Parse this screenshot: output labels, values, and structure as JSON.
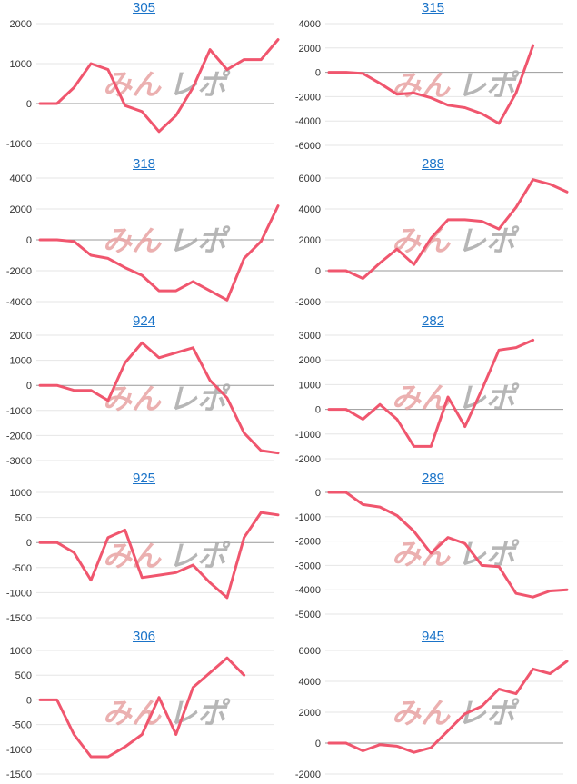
{
  "watermark": {
    "text": "みんレポ",
    "colors": {
      "left": "#e8a3a3",
      "right": "#aaaaaa"
    }
  },
  "line_color": "#f0566e",
  "grid_color": "#e6e6e6",
  "title_color": "#1a73c8",
  "chart_data": [
    {
      "type": "line",
      "title": "305",
      "ylim": [
        -1000,
        2000
      ],
      "yticks": [
        2000,
        1000,
        0,
        -1000
      ],
      "values": [
        0,
        0,
        400,
        1000,
        850,
        -50,
        -200,
        -700,
        -300,
        400,
        1350,
        850,
        1100,
        1100,
        1600
      ]
    },
    {
      "type": "line",
      "title": "315",
      "ylim": [
        -6000,
        4000
      ],
      "yticks": [
        4000,
        2000,
        0,
        -2000,
        -4000,
        -6000
      ],
      "values": [
        0,
        0,
        -100,
        -900,
        -1800,
        -1700,
        -2100,
        -2700,
        -2900,
        -3400,
        -4200,
        -1700,
        2200
      ]
    },
    {
      "type": "line",
      "title": "318",
      "ylim": [
        -4000,
        4000
      ],
      "yticks": [
        4000,
        2000,
        0,
        -2000,
        -4000
      ],
      "values": [
        0,
        0,
        -100,
        -1000,
        -1200,
        -1800,
        -2300,
        -3300,
        -3300,
        -2700,
        -3300,
        -3900,
        -1200,
        -100,
        2200
      ]
    },
    {
      "type": "line",
      "title": "288",
      "ylim": [
        -2000,
        6000
      ],
      "yticks": [
        6000,
        4000,
        2000,
        0,
        -2000
      ],
      "values": [
        0,
        0,
        -500,
        500,
        1400,
        400,
        2100,
        3300,
        3300,
        3200,
        2700,
        4100,
        5900,
        5600,
        5100
      ]
    },
    {
      "type": "line",
      "title": "924",
      "ylim": [
        -3000,
        2000
      ],
      "yticks": [
        2000,
        1000,
        0,
        -1000,
        -2000,
        -3000
      ],
      "values": [
        0,
        0,
        -200,
        -200,
        -600,
        900,
        1700,
        1100,
        1300,
        1500,
        200,
        -500,
        -1900,
        -2600,
        -2700
      ]
    },
    {
      "type": "line",
      "title": "282",
      "ylim": [
        -2000,
        3000
      ],
      "yticks": [
        3000,
        2000,
        1000,
        0,
        -1000,
        -2000
      ],
      "values": [
        0,
        0,
        -400,
        200,
        -400,
        -1500,
        -1500,
        500,
        -700,
        800,
        2400,
        2500,
        2800
      ]
    },
    {
      "type": "line",
      "title": "925",
      "ylim": [
        -1500,
        1000
      ],
      "yticks": [
        1000,
        500,
        0,
        -500,
        -1000,
        -1500
      ],
      "values": [
        0,
        0,
        -200,
        -750,
        100,
        250,
        -700,
        -650,
        -600,
        -450,
        -800,
        -1100,
        100,
        600,
        550
      ]
    },
    {
      "type": "line",
      "title": "289",
      "ylim": [
        -5000,
        0
      ],
      "yticks": [
        0,
        -1000,
        -2000,
        -3000,
        -4000,
        -5000
      ],
      "values": [
        0,
        0,
        -500,
        -600,
        -950,
        -1600,
        -2500,
        -1850,
        -2100,
        -3000,
        -3050,
        -4150,
        -4300,
        -4050,
        -4000
      ]
    },
    {
      "type": "line",
      "title": "306",
      "ylim": [
        -1500,
        1000
      ],
      "yticks": [
        1000,
        500,
        0,
        -500,
        -1000,
        -1500
      ],
      "values": [
        0,
        0,
        -700,
        -1150,
        -1150,
        -950,
        -700,
        50,
        -700,
        250,
        550,
        850,
        500
      ]
    },
    {
      "type": "line",
      "title": "945",
      "ylim": [
        -2000,
        6000
      ],
      "yticks": [
        6000,
        4000,
        2000,
        0,
        -2000
      ],
      "values": [
        0,
        0,
        -500,
        -100,
        -200,
        -600,
        -300,
        800,
        1900,
        2400,
        3500,
        3200,
        4800,
        4500,
        5300
      ]
    }
  ]
}
